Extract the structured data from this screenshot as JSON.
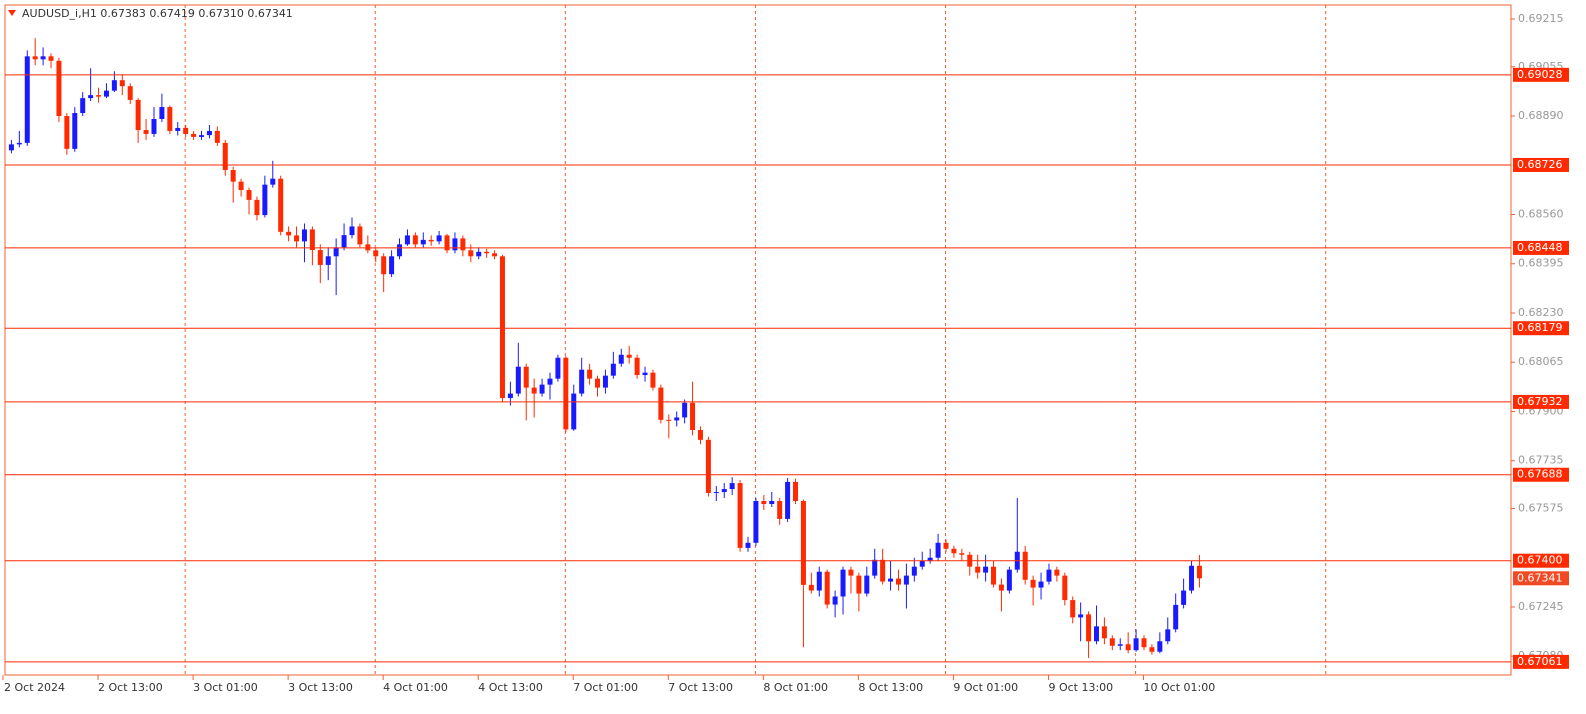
{
  "chart_data": {
    "type": "candlestick",
    "title": "AUDUSD_i,H1  0.67383 0.67419 0.67310 0.67341",
    "bull_color": "#1a1aff",
    "bear_color": "#ff2a00",
    "level_color": "#ff2a00",
    "xlim": [
      -1,
      189.4
    ],
    "ylim": [
      0.67017,
      0.69262
    ],
    "xticks": [
      {
        "value": -1,
        "label": "2 Oct 2024"
      },
      {
        "value": 11,
        "label": "2 Oct 13:00"
      },
      {
        "value": 23,
        "label": "3 Oct 01:00"
      },
      {
        "value": 35,
        "label": "3 Oct 13:00"
      },
      {
        "value": 47,
        "label": "4 Oct 01:00"
      },
      {
        "value": 59,
        "label": "4 Oct 13:00"
      },
      {
        "value": 71,
        "label": "7 Oct 01:00"
      },
      {
        "value": 83,
        "label": "7 Oct 13:00"
      },
      {
        "value": 95,
        "label": "8 Oct 01:00"
      },
      {
        "value": 107,
        "label": "8 Oct 13:00"
      },
      {
        "value": 119,
        "label": "9 Oct 01:00"
      },
      {
        "value": 131,
        "label": "9 Oct 13:00"
      },
      {
        "value": 143,
        "label": "10 Oct 01:00"
      }
    ],
    "day_separators": [
      22,
      46,
      70,
      94,
      118,
      142,
      166
    ],
    "yticks": [
      0.69215,
      0.69055,
      {
        "value": 0.6889,
        "label": "0.68890"
      },
      {
        "value": 0.6856,
        "label": "0.68560"
      },
      0.68395,
      {
        "value": 0.6823,
        "label": "0.68230"
      },
      0.68065,
      {
        "value": 0.679,
        "label": "0.67900"
      },
      0.67735,
      0.67575,
      0.67245,
      {
        "value": 0.6708,
        "label": "0.67080"
      }
    ],
    "levels": [
      0.69028,
      0.68726,
      0.68448,
      0.68179,
      0.67932,
      0.67688,
      {
        "value": 0.674,
        "label": "0.67400"
      },
      0.67061
    ],
    "ohlc": [
      [
        0.68775,
        0.6881,
        0.68765,
        0.68795
      ],
      [
        0.68795,
        0.6884,
        0.68785,
        0.688
      ],
      [
        0.688,
        0.6911,
        0.6879,
        0.6909
      ],
      [
        0.6909,
        0.69151,
        0.6906,
        0.6908
      ],
      [
        0.6908,
        0.6912,
        0.6906,
        0.6909
      ],
      [
        0.6909,
        0.691,
        0.6905,
        0.69075
      ],
      [
        0.69075,
        0.69085,
        0.6887,
        0.6889
      ],
      [
        0.6889,
        0.689,
        0.6876,
        0.6878
      ],
      [
        0.6878,
        0.6892,
        0.6877,
        0.689
      ],
      [
        0.689,
        0.6897,
        0.6889,
        0.6895
      ],
      [
        0.6895,
        0.6905,
        0.6894,
        0.6896
      ],
      [
        0.6896,
        0.68985,
        0.68935,
        0.68955
      ],
      [
        0.68955,
        0.69,
        0.6895,
        0.68975
      ],
      [
        0.68975,
        0.6904,
        0.6897,
        0.6901
      ],
      [
        0.6901,
        0.6903,
        0.6896,
        0.6899
      ],
      [
        0.6899,
        0.69,
        0.6893,
        0.68944
      ],
      [
        0.68944,
        0.6895,
        0.688,
        0.68843
      ],
      [
        0.68843,
        0.6888,
        0.6881,
        0.6883
      ],
      [
        0.6883,
        0.6892,
        0.6882,
        0.6888
      ],
      [
        0.6888,
        0.68965,
        0.6887,
        0.6892
      ],
      [
        0.6892,
        0.68925,
        0.6883,
        0.6884
      ],
      [
        0.6884,
        0.6887,
        0.68825,
        0.6885
      ],
      [
        0.6885,
        0.6886,
        0.6882,
        0.6883
      ],
      [
        0.6883,
        0.6884,
        0.6881,
        0.6882
      ],
      [
        0.6882,
        0.6884,
        0.6881,
        0.68826
      ],
      [
        0.68826,
        0.6886,
        0.68815,
        0.6884
      ],
      [
        0.6884,
        0.68855,
        0.6879,
        0.688
      ],
      [
        0.688,
        0.6881,
        0.6869,
        0.68709
      ],
      [
        0.68709,
        0.6872,
        0.686,
        0.6867
      ],
      [
        0.6867,
        0.6868,
        0.6862,
        0.68642
      ],
      [
        0.68642,
        0.6865,
        0.6856,
        0.68609
      ],
      [
        0.68609,
        0.6862,
        0.6854,
        0.68558
      ],
      [
        0.68558,
        0.6869,
        0.6855,
        0.6866
      ],
      [
        0.6866,
        0.6874,
        0.6865,
        0.6868
      ],
      [
        0.6868,
        0.6869,
        0.6849,
        0.68502
      ],
      [
        0.68502,
        0.6852,
        0.6847,
        0.6849
      ],
      [
        0.6849,
        0.6852,
        0.6845,
        0.6847
      ],
      [
        0.6847,
        0.6853,
        0.684,
        0.6851
      ],
      [
        0.6851,
        0.6852,
        0.6839,
        0.68441
      ],
      [
        0.68441,
        0.6846,
        0.6833,
        0.68391
      ],
      [
        0.68391,
        0.6845,
        0.6834,
        0.6842
      ],
      [
        0.6842,
        0.6848,
        0.6829,
        0.6845
      ],
      [
        0.6845,
        0.6853,
        0.6844,
        0.68491
      ],
      [
        0.68491,
        0.6855,
        0.6848,
        0.6852
      ],
      [
        0.6852,
        0.6853,
        0.6845,
        0.6846
      ],
      [
        0.6846,
        0.6849,
        0.6843,
        0.6844
      ],
      [
        0.6844,
        0.6845,
        0.684,
        0.6842
      ],
      [
        0.6842,
        0.6843,
        0.683,
        0.6836
      ],
      [
        0.6836,
        0.6844,
        0.6835,
        0.6842
      ],
      [
        0.6842,
        0.6848,
        0.6841,
        0.6846
      ],
      [
        0.6846,
        0.6851,
        0.68455,
        0.6849
      ],
      [
        0.6849,
        0.685,
        0.6845,
        0.6846
      ],
      [
        0.6846,
        0.685,
        0.6845,
        0.68475
      ],
      [
        0.68475,
        0.6849,
        0.68455,
        0.6847
      ],
      [
        0.6847,
        0.68505,
        0.6846,
        0.6849
      ],
      [
        0.6849,
        0.68495,
        0.6843,
        0.6844
      ],
      [
        0.6844,
        0.685,
        0.6843,
        0.6848
      ],
      [
        0.6848,
        0.6849,
        0.6842,
        0.6844
      ],
      [
        0.6844,
        0.6846,
        0.684,
        0.6842
      ],
      [
        0.6842,
        0.6845,
        0.6841,
        0.68435
      ],
      [
        0.68435,
        0.68445,
        0.68415,
        0.6843
      ],
      [
        0.6843,
        0.6844,
        0.6841,
        0.6842
      ],
      [
        0.6842,
        0.68425,
        0.6793,
        0.67945
      ],
      [
        0.67945,
        0.68,
        0.6792,
        0.6796
      ],
      [
        0.6796,
        0.6813,
        0.6795,
        0.6805
      ],
      [
        0.6805,
        0.6806,
        0.6787,
        0.6798
      ],
      [
        0.6798,
        0.6801,
        0.6788,
        0.6796
      ],
      [
        0.6796,
        0.6801,
        0.6795,
        0.6799
      ],
      [
        0.6799,
        0.6803,
        0.6794,
        0.6801
      ],
      [
        0.6801,
        0.6809,
        0.68,
        0.6808
      ],
      [
        0.6808,
        0.68085,
        0.6783,
        0.6784
      ],
      [
        0.6784,
        0.6799,
        0.67835,
        0.6796
      ],
      [
        0.6796,
        0.6808,
        0.6795,
        0.6804
      ],
      [
        0.6804,
        0.6806,
        0.6799,
        0.6801
      ],
      [
        0.6801,
        0.6802,
        0.6795,
        0.6798
      ],
      [
        0.6798,
        0.6804,
        0.6796,
        0.6802
      ],
      [
        0.6802,
        0.681,
        0.6801,
        0.6806
      ],
      [
        0.6806,
        0.6811,
        0.6805,
        0.6809
      ],
      [
        0.6809,
        0.6812,
        0.6806,
        0.6808
      ],
      [
        0.6808,
        0.6809,
        0.6801,
        0.68022
      ],
      [
        0.68022,
        0.6805,
        0.68,
        0.6803
      ],
      [
        0.6803,
        0.6804,
        0.6797,
        0.6798
      ],
      [
        0.6798,
        0.6799,
        0.6786,
        0.67872
      ],
      [
        0.67872,
        0.6789,
        0.6781,
        0.6787
      ],
      [
        0.6787,
        0.679,
        0.6785,
        0.6788
      ],
      [
        0.6788,
        0.6794,
        0.6786,
        0.67929
      ],
      [
        0.67929,
        0.68,
        0.6782,
        0.67838
      ],
      [
        0.67838,
        0.6785,
        0.6779,
        0.67805
      ],
      [
        0.67805,
        0.67815,
        0.67615,
        0.67627
      ],
      [
        0.67627,
        0.6765,
        0.676,
        0.6763
      ],
      [
        0.6763,
        0.6766,
        0.6761,
        0.6764
      ],
      [
        0.6764,
        0.6768,
        0.6762,
        0.6766
      ],
      [
        0.6766,
        0.6767,
        0.6743,
        0.67443
      ],
      [
        0.67443,
        0.6748,
        0.6743,
        0.6746
      ],
      [
        0.6746,
        0.6761,
        0.6745,
        0.676
      ],
      [
        0.676,
        0.6762,
        0.6757,
        0.6759
      ],
      [
        0.6759,
        0.6763,
        0.6758,
        0.676
      ],
      [
        0.676,
        0.6761,
        0.6752,
        0.6754
      ],
      [
        0.6754,
        0.67677,
        0.6753,
        0.67664
      ],
      [
        0.67664,
        0.67675,
        0.6759,
        0.676
      ],
      [
        0.676,
        0.67605,
        0.6711,
        0.67319
      ],
      [
        0.67319,
        0.6736,
        0.6729,
        0.673
      ],
      [
        0.673,
        0.6738,
        0.6728,
        0.67363
      ],
      [
        0.67363,
        0.6737,
        0.6724,
        0.67253
      ],
      [
        0.67253,
        0.673,
        0.6721,
        0.6728
      ],
      [
        0.6728,
        0.6738,
        0.6722,
        0.6737
      ],
      [
        0.6737,
        0.6738,
        0.6729,
        0.6735
      ],
      [
        0.6735,
        0.6736,
        0.6723,
        0.6729
      ],
      [
        0.6729,
        0.6738,
        0.6728,
        0.6735
      ],
      [
        0.6735,
        0.6744,
        0.6734,
        0.67403
      ],
      [
        0.67403,
        0.6744,
        0.6732,
        0.6733
      ],
      [
        0.6733,
        0.674,
        0.673,
        0.6734
      ],
      [
        0.6734,
        0.6737,
        0.673,
        0.6732
      ],
      [
        0.6732,
        0.6739,
        0.6724,
        0.6735
      ],
      [
        0.6735,
        0.6741,
        0.6733,
        0.6738
      ],
      [
        0.6738,
        0.6743,
        0.6737,
        0.674
      ],
      [
        0.674,
        0.6744,
        0.6739,
        0.6741
      ],
      [
        0.6741,
        0.6749,
        0.674,
        0.6746
      ],
      [
        0.6746,
        0.6747,
        0.6743,
        0.6744
      ],
      [
        0.6744,
        0.6745,
        0.6741,
        0.67425
      ],
      [
        0.67425,
        0.6744,
        0.674,
        0.6742
      ],
      [
        0.6742,
        0.6743,
        0.6735,
        0.6738
      ],
      [
        0.6738,
        0.6742,
        0.6734,
        0.6736
      ],
      [
        0.6736,
        0.6742,
        0.6733,
        0.6738
      ],
      [
        0.6738,
        0.674,
        0.6731,
        0.6732
      ],
      [
        0.6732,
        0.6734,
        0.6723,
        0.673
      ],
      [
        0.673,
        0.6738,
        0.6729,
        0.6737
      ],
      [
        0.6737,
        0.6761,
        0.6736,
        0.6743
      ],
      [
        0.6743,
        0.6745,
        0.6732,
        0.67336
      ],
      [
        0.67336,
        0.6735,
        0.6725,
        0.6731
      ],
      [
        0.6731,
        0.6736,
        0.6727,
        0.6733
      ],
      [
        0.6733,
        0.6739,
        0.6732,
        0.6737
      ],
      [
        0.6737,
        0.6738,
        0.6733,
        0.6735
      ],
      [
        0.6735,
        0.6736,
        0.6725,
        0.67268
      ],
      [
        0.67268,
        0.6728,
        0.6719,
        0.6721
      ],
      [
        0.6721,
        0.6726,
        0.6713,
        0.6722
      ],
      [
        0.6722,
        0.6723,
        0.67074,
        0.6713
      ],
      [
        0.6713,
        0.6725,
        0.6712,
        0.6718
      ],
      [
        0.6718,
        0.6721,
        0.6712,
        0.6714
      ],
      [
        0.6714,
        0.6715,
        0.671,
        0.67115
      ],
      [
        0.67115,
        0.6714,
        0.671,
        0.6712
      ],
      [
        0.6712,
        0.6716,
        0.6709,
        0.671
      ],
      [
        0.671,
        0.6717,
        0.67095,
        0.6714
      ],
      [
        0.6714,
        0.6715,
        0.671,
        0.6711
      ],
      [
        0.6711,
        0.6712,
        0.67085,
        0.67095
      ],
      [
        0.67095,
        0.6716,
        0.6709,
        0.6713
      ],
      [
        0.6713,
        0.6721,
        0.6712,
        0.6717
      ],
      [
        0.6717,
        0.6729,
        0.6716,
        0.67252
      ],
      [
        0.67252,
        0.6734,
        0.6724,
        0.673
      ],
      [
        0.673,
        0.674,
        0.6729,
        0.67383
      ],
      [
        0.67383,
        0.67419,
        0.6731,
        0.67341
      ]
    ]
  }
}
